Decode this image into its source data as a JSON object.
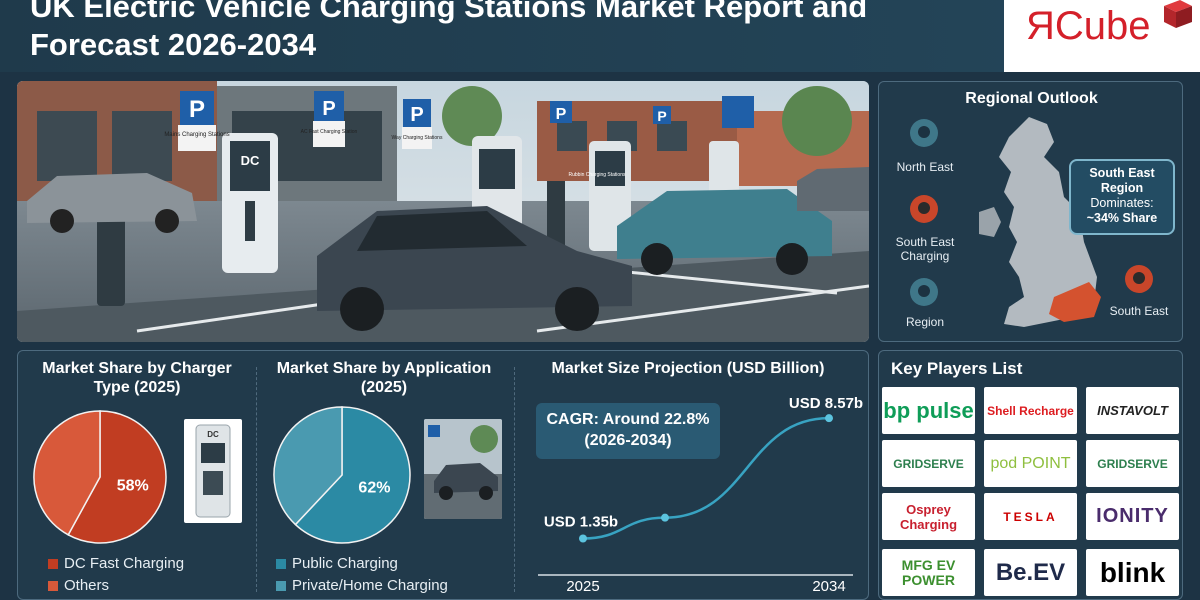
{
  "header": {
    "title": "UK Electric Vehicle Charging Stations Market Report and Forecast 2026-2034",
    "logo_text": "ЯCube"
  },
  "hero": {
    "signs": [
      "P",
      "P",
      "P",
      "P",
      "P"
    ],
    "charger_label": "DC",
    "sign_texts": [
      "Mains Charging Stations",
      "AC Fast Charging Station",
      "Way Charging Stations",
      "Rubbin Charging Stations"
    ]
  },
  "regional": {
    "title": "Regional Outlook",
    "pins": [
      {
        "label": "North East"
      },
      {
        "label": "South East Charging"
      },
      {
        "label": "Region"
      },
      {
        "label": "South East"
      }
    ],
    "callout": {
      "line1": "South East",
      "line2": "Region",
      "line3": "Dominates:",
      "line4": "~34% Share"
    }
  },
  "charger_type": {
    "title": "Market Share by Charger Type (2025)",
    "legend": [
      "DC Fast Charging",
      "Others"
    ]
  },
  "application": {
    "title": "Market Share by Application (2025)",
    "legend": [
      "Public Charging",
      "Private/Home Charging"
    ]
  },
  "projection": {
    "title": "Market Size Projection (USD Billion)",
    "cagr_line1": "CAGR: Around 22.8%",
    "cagr_line2": "(2026-2034)"
  },
  "chart_data": [
    {
      "type": "pie",
      "title": "Market Share by Charger Type (2025)",
      "labels": [
        "DC Fast Charging",
        "Others"
      ],
      "values": [
        58,
        42
      ],
      "value_label": "58%",
      "colors": [
        "#c13d22",
        "#d8593a"
      ]
    },
    {
      "type": "pie",
      "title": "Market Share by Application (2025)",
      "labels": [
        "Public Charging",
        "Private/Home Charging"
      ],
      "values": [
        62,
        38
      ],
      "value_label": "62%",
      "colors": [
        "#2b8aa4",
        "#4a9ab0"
      ]
    },
    {
      "type": "line",
      "title": "Market Size Projection (USD Billion)",
      "x": [
        2025,
        2028,
        2034
      ],
      "y": [
        1.35,
        2.6,
        8.57
      ],
      "start_label": "USD 1.35b",
      "end_label": "USD 8.57b",
      "x_tick_labels": [
        "2025",
        "2034"
      ],
      "xlim": [
        2025,
        2034
      ],
      "ylim": [
        0,
        9
      ]
    }
  ],
  "players": {
    "title": "Key Players List",
    "list": [
      {
        "name": "bp pulse"
      },
      {
        "name": "Shell Recharge"
      },
      {
        "name": "INSTAVOLT"
      },
      {
        "name": "GRIDSERVE"
      },
      {
        "name": "pod POINT"
      },
      {
        "name": "GRIDSERVE"
      },
      {
        "name": "Osprey Charging"
      },
      {
        "name": "TESLA"
      },
      {
        "name": "IONITY"
      },
      {
        "name": "MFG EV POWER"
      },
      {
        "name": "Be.EV"
      },
      {
        "name": "blink"
      }
    ]
  },
  "colors": {
    "background": "#1d3344",
    "accent_red": "#c13d22",
    "accent_teal": "#2b8aa4",
    "panel_border": "#4d6a7e"
  }
}
